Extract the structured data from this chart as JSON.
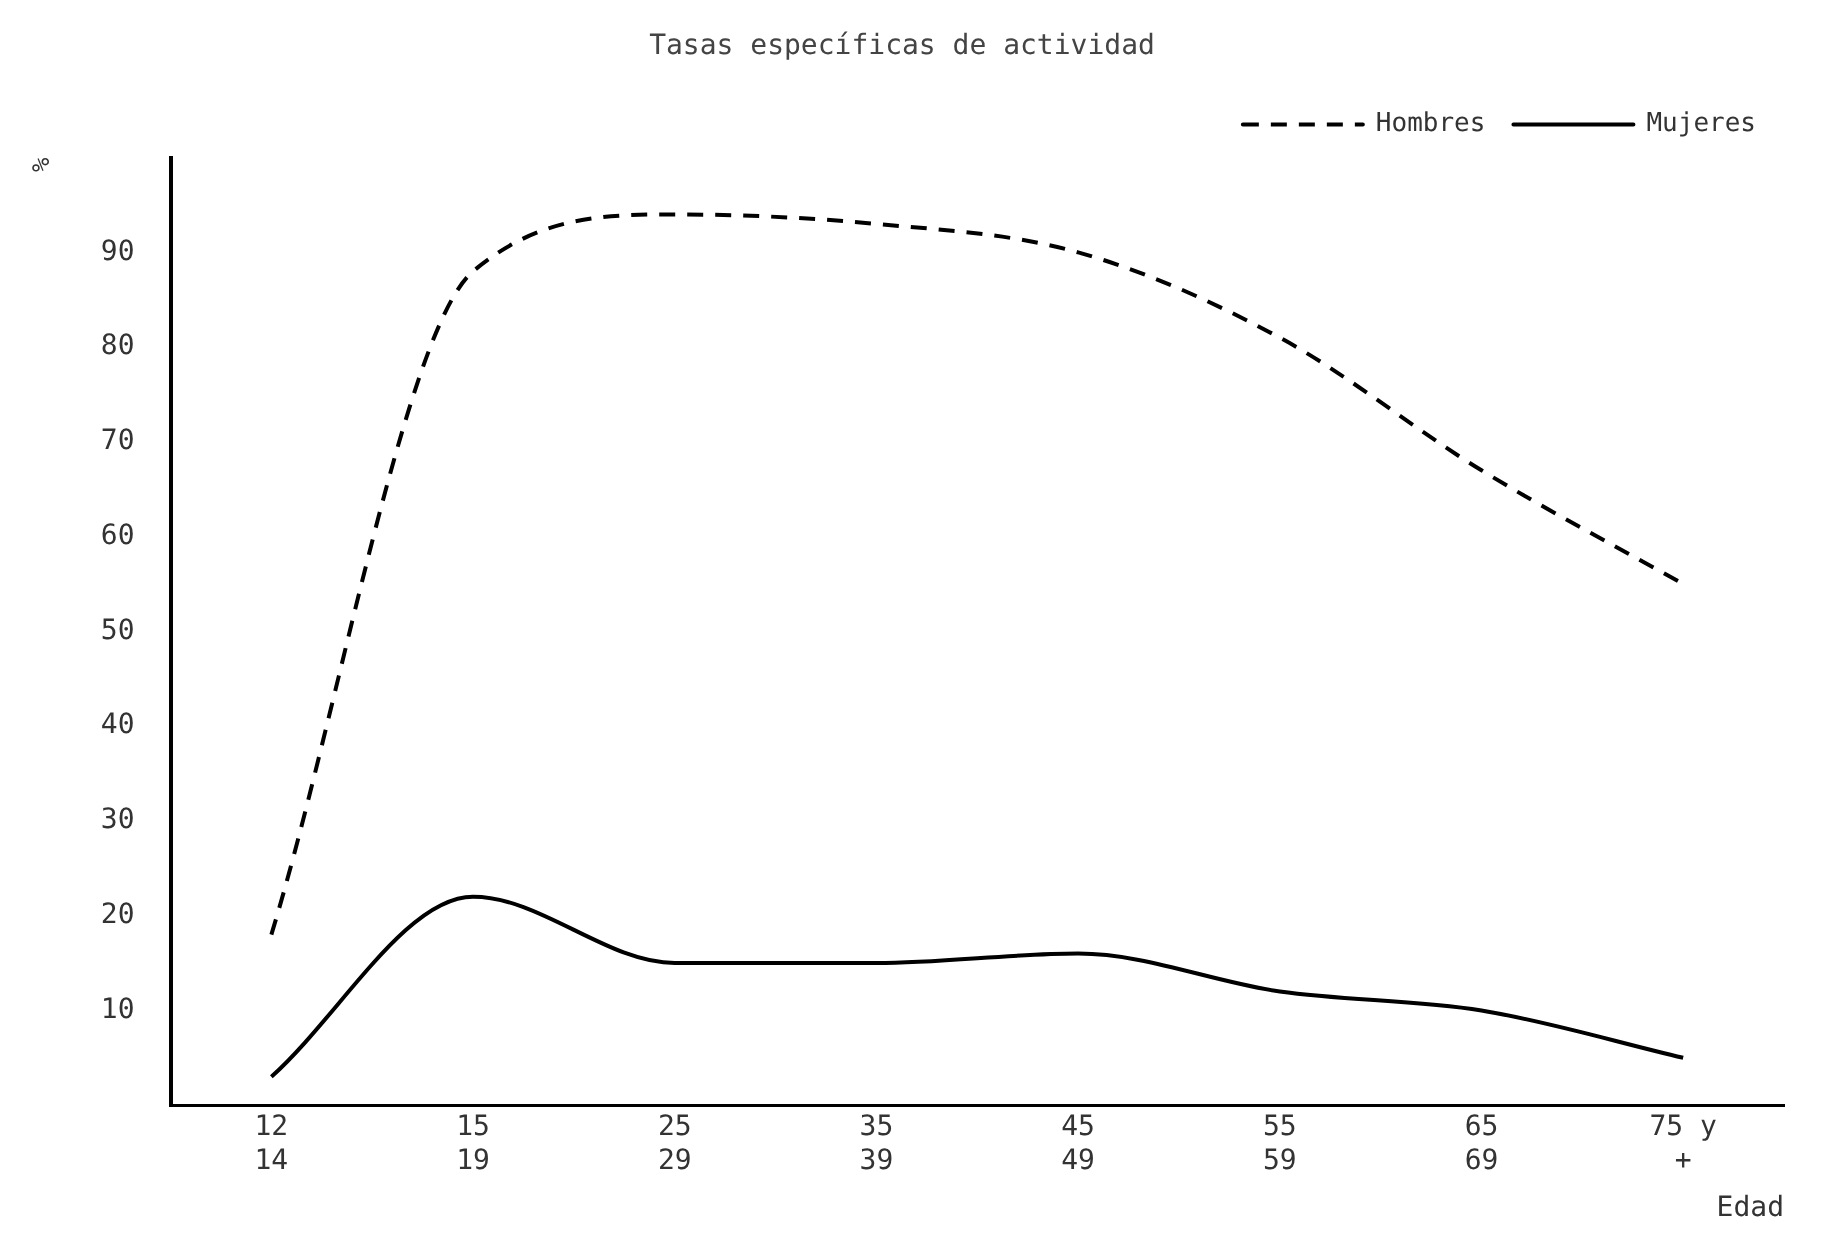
{
  "chart_data": {
    "type": "line",
    "title": "Tasas específicas de actividad",
    "ylabel": "%",
    "xlabel": "Edad",
    "categories": [
      "12\n14",
      "15\n19",
      "25\n29",
      "35\n39",
      "45\n49",
      "55\n59",
      "65\n69",
      "75 y\n+"
    ],
    "series": [
      {
        "name": "Hombres",
        "color": "#000000",
        "line_style": "dashed",
        "values": [
          18,
          88,
          94,
          93,
          90,
          81,
          67,
          55
        ]
      },
      {
        "name": "Mujeres",
        "color": "#000000",
        "line_style": "solid",
        "values": [
          3,
          22,
          15,
          15,
          16,
          12,
          10,
          5
        ]
      }
    ],
    "ylim": [
      0,
      100
    ],
    "yticks": [
      10,
      20,
      30,
      40,
      50,
      60,
      70,
      80,
      90
    ],
    "grid": false,
    "legend": "top right",
    "marker": "none"
  }
}
